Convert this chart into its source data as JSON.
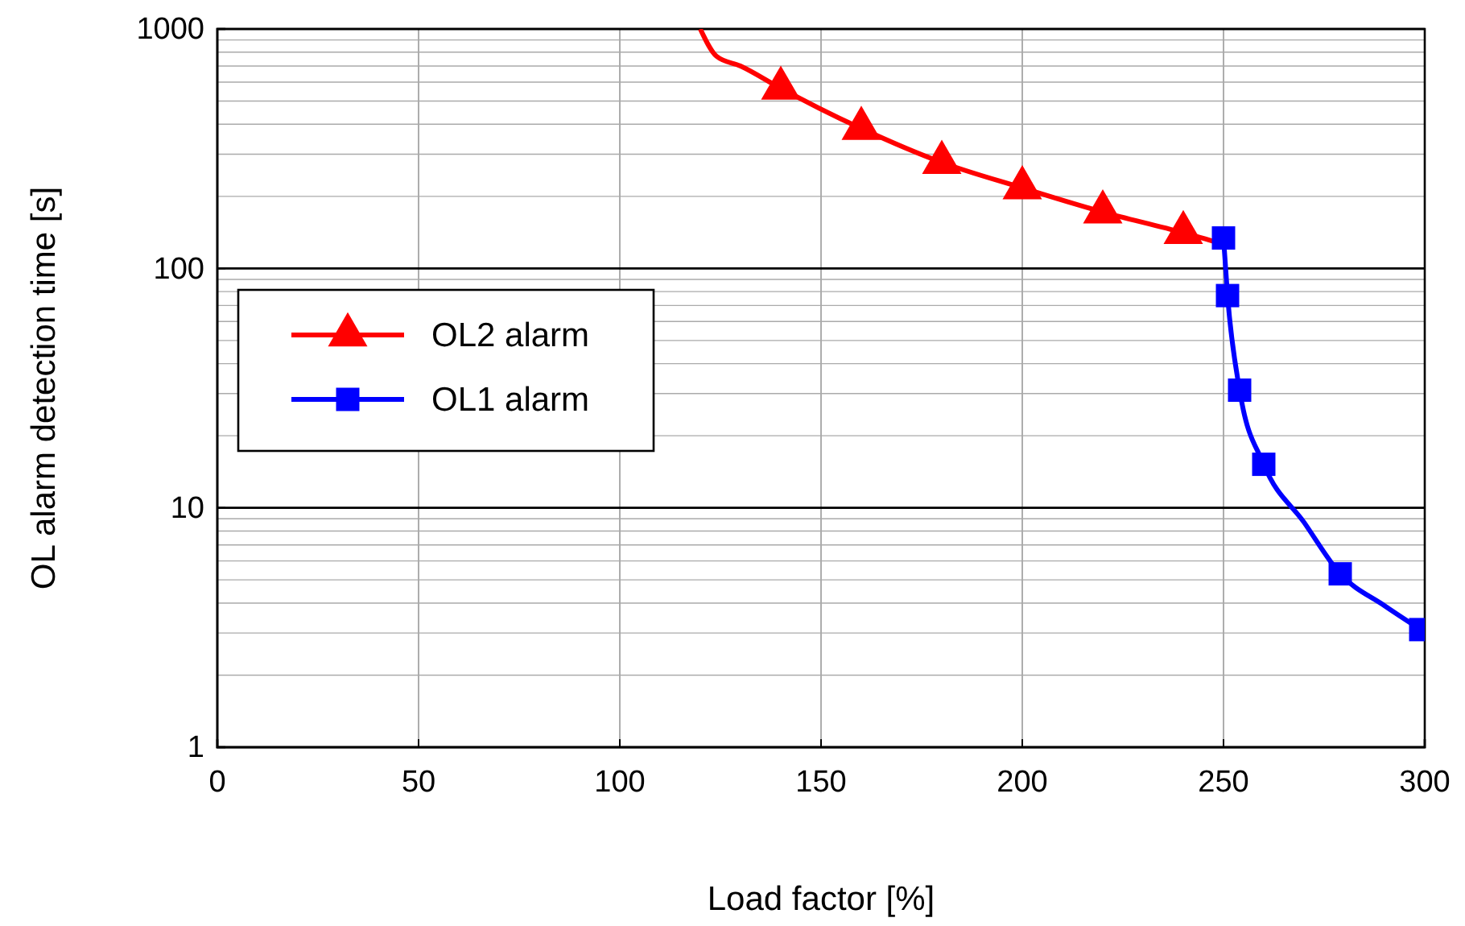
{
  "chart_data": {
    "type": "line",
    "xlabel": "Load factor [%]",
    "ylabel": "OL alarm detection time [s]",
    "xlim": [
      0,
      300
    ],
    "xticks": [
      0,
      50,
      100,
      150,
      200,
      250,
      300
    ],
    "ylim": [
      1,
      1000
    ],
    "yticks": [
      1,
      10,
      100,
      1000
    ],
    "log": true,
    "grid": true,
    "legend": "left",
    "series": [
      {
        "color": "#ff0000",
        "marker": "none",
        "x": [
          120,
          124,
          130,
          140,
          160,
          180,
          200,
          220,
          240,
          250
        ],
        "values": [
          1000,
          770,
          700,
          565,
          384,
          277,
          217,
          172,
          141,
          126
        ]
      },
      {
        "color": "#0000ff",
        "marker": "none",
        "x": [
          250,
          251,
          254,
          260,
          270,
          279,
          290,
          299
        ],
        "values": [
          134,
          77,
          31,
          15.2,
          8.7,
          5.3,
          3.9,
          3.1
        ]
      },
      {
        "type": "scatter",
        "name": "OL2 alarm",
        "color": "#ff0000",
        "marker": "triangle",
        "x": [
          140,
          160,
          180,
          200,
          220,
          240
        ],
        "values": [
          565,
          384,
          277,
          217,
          172,
          141
        ]
      },
      {
        "type": "scatter",
        "name": "OL1 alarm",
        "color": "#0000ff",
        "marker": "square",
        "x": [
          250,
          251,
          254,
          260,
          279,
          299
        ],
        "values": [
          134,
          77,
          31,
          15.2,
          5.3,
          3.1
        ]
      }
    ]
  }
}
